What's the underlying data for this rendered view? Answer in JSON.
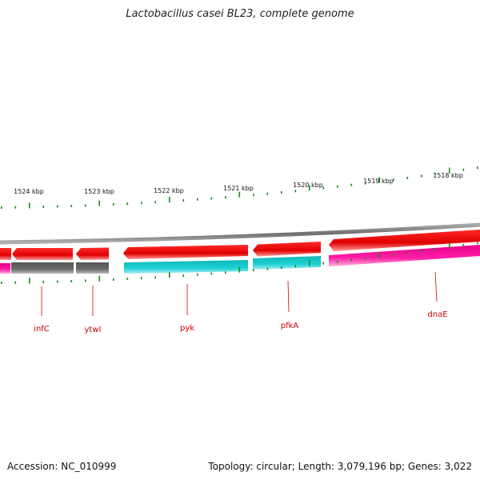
{
  "title": "Lactobacillus casei BL23, complete genome",
  "footer": {
    "accession": "Accession: NC_010999",
    "topology": "Topology: circular; Length: 3,079,196 bp; Genes: 3,022"
  },
  "kbp_labels": [
    "1524 kbp",
    "1523 kbp",
    "1522 kbp",
    "1521 kbp",
    "1520 kbp",
    "1519 kbp",
    "1518 kbp"
  ],
  "gene_labels": [
    "infC",
    "ytwI",
    "pyk",
    "pfkA",
    "dnaE"
  ],
  "colors": {
    "backbone": "#888888",
    "forward_gene": "#ee0000",
    "reverse_gray": "#666666",
    "cyan": "#16c8cc",
    "magenta": "#ee1199",
    "tick": "#1a8a1a",
    "label": "#cc0000"
  }
}
